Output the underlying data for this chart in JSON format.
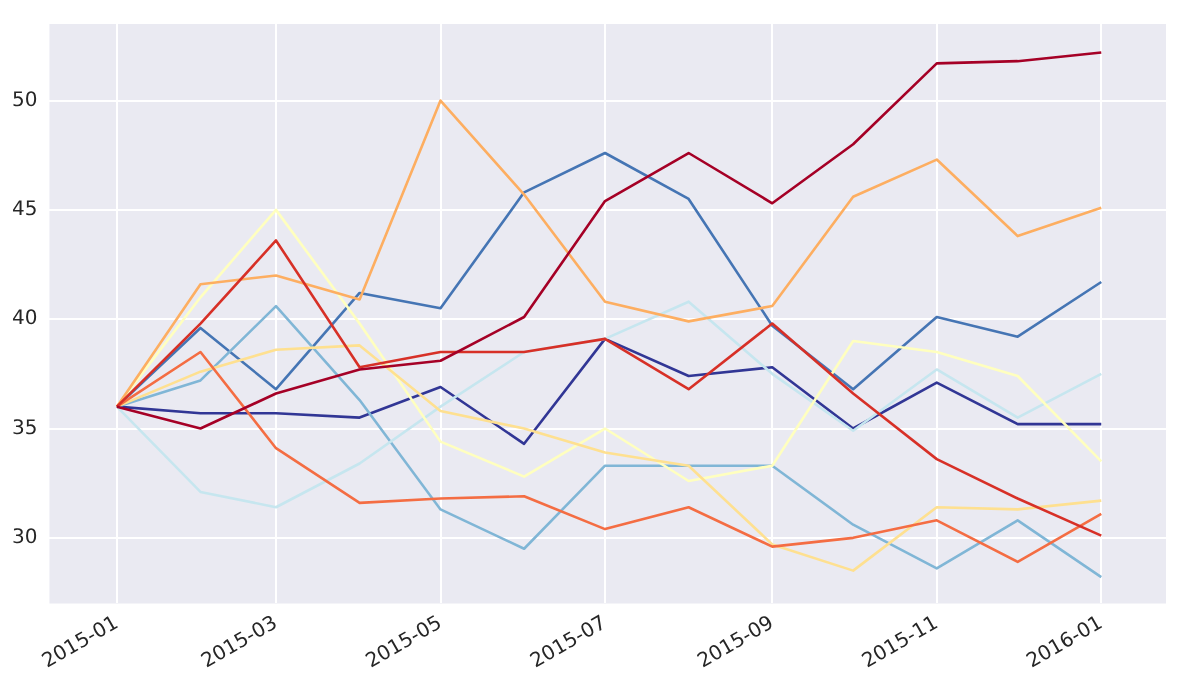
{
  "chart_data": {
    "type": "line",
    "x": [
      "2015-01-01",
      "2015-02-01",
      "2015-03-01",
      "2015-04-01",
      "2015-05-01",
      "2015-06-01",
      "2015-07-01",
      "2015-08-01",
      "2015-09-01",
      "2015-10-01",
      "2015-11-01",
      "2015-12-01",
      "2016-01-01"
    ],
    "series": [
      {
        "color": "#a50026",
        "values": [
          36,
          35.0,
          36.6,
          37.7,
          38.1,
          40.1,
          45.4,
          47.6,
          45.3,
          48.0,
          51.7,
          51.8,
          52.2
        ]
      },
      {
        "color": "#d73027",
        "values": [
          36,
          39.8,
          43.6,
          37.8,
          38.5,
          38.5,
          39.1,
          36.8,
          39.8,
          36.6,
          33.6,
          31.8,
          30.1
        ]
      },
      {
        "color": "#f46d43",
        "values": [
          36,
          38.5,
          34.1,
          31.6,
          31.8,
          31.9,
          30.4,
          31.4,
          29.6,
          30.0,
          30.8,
          28.9,
          31.1
        ]
      },
      {
        "color": "#fdae61",
        "values": [
          36,
          41.6,
          42.0,
          40.9,
          50.0,
          45.7,
          40.8,
          39.9,
          40.6,
          45.6,
          47.3,
          43.8,
          45.1
        ]
      },
      {
        "color": "#fee090",
        "values": [
          36,
          37.6,
          38.6,
          38.8,
          35.8,
          35.0,
          33.9,
          33.3,
          29.7,
          28.5,
          31.4,
          31.3,
          31.7
        ]
      },
      {
        "color": "#ffffbf",
        "values": [
          36,
          41.0,
          45.0,
          39.8,
          34.4,
          32.8,
          35.0,
          32.6,
          33.3,
          39.0,
          38.5,
          37.4,
          33.5
        ]
      },
      {
        "color": "#c6e6ef",
        "values": [
          36,
          32.1,
          31.4,
          33.4,
          36.0,
          38.5,
          39.1,
          40.8,
          37.5,
          34.9,
          37.7,
          35.5,
          37.5
        ]
      },
      {
        "color": "#80b6d6",
        "values": [
          36,
          37.2,
          40.6,
          36.3,
          31.3,
          29.5,
          33.3,
          33.3,
          33.3,
          30.6,
          28.6,
          30.8,
          28.2
        ]
      },
      {
        "color": "#4575b4",
        "values": [
          36,
          39.6,
          36.8,
          41.2,
          40.5,
          45.8,
          47.6,
          45.5,
          39.7,
          36.8,
          40.1,
          39.2,
          41.7
        ]
      },
      {
        "color": "#313695",
        "values": [
          36,
          35.7,
          35.7,
          35.5,
          36.9,
          34.3,
          39.1,
          37.4,
          37.8,
          35.0,
          37.1,
          35.2,
          35.2
        ]
      }
    ],
    "xlim": [
      "2014-12-07",
      "2016-01-25"
    ],
    "ylim": [
      27,
      53.5
    ],
    "xticks": [
      {
        "value": "2015-01-01",
        "label": "2015-01"
      },
      {
        "value": "2015-03-01",
        "label": "2015-03"
      },
      {
        "value": "2015-05-01",
        "label": "2015-05"
      },
      {
        "value": "2015-07-01",
        "label": "2015-07"
      },
      {
        "value": "2015-09-01",
        "label": "2015-09"
      },
      {
        "value": "2015-11-01",
        "label": "2015-11"
      },
      {
        "value": "2016-01-01",
        "label": "2016-01"
      }
    ],
    "yticks": [
      30,
      35,
      40,
      45,
      50
    ],
    "grid": true,
    "legend": false,
    "marker": "none",
    "line_style": "solid"
  }
}
